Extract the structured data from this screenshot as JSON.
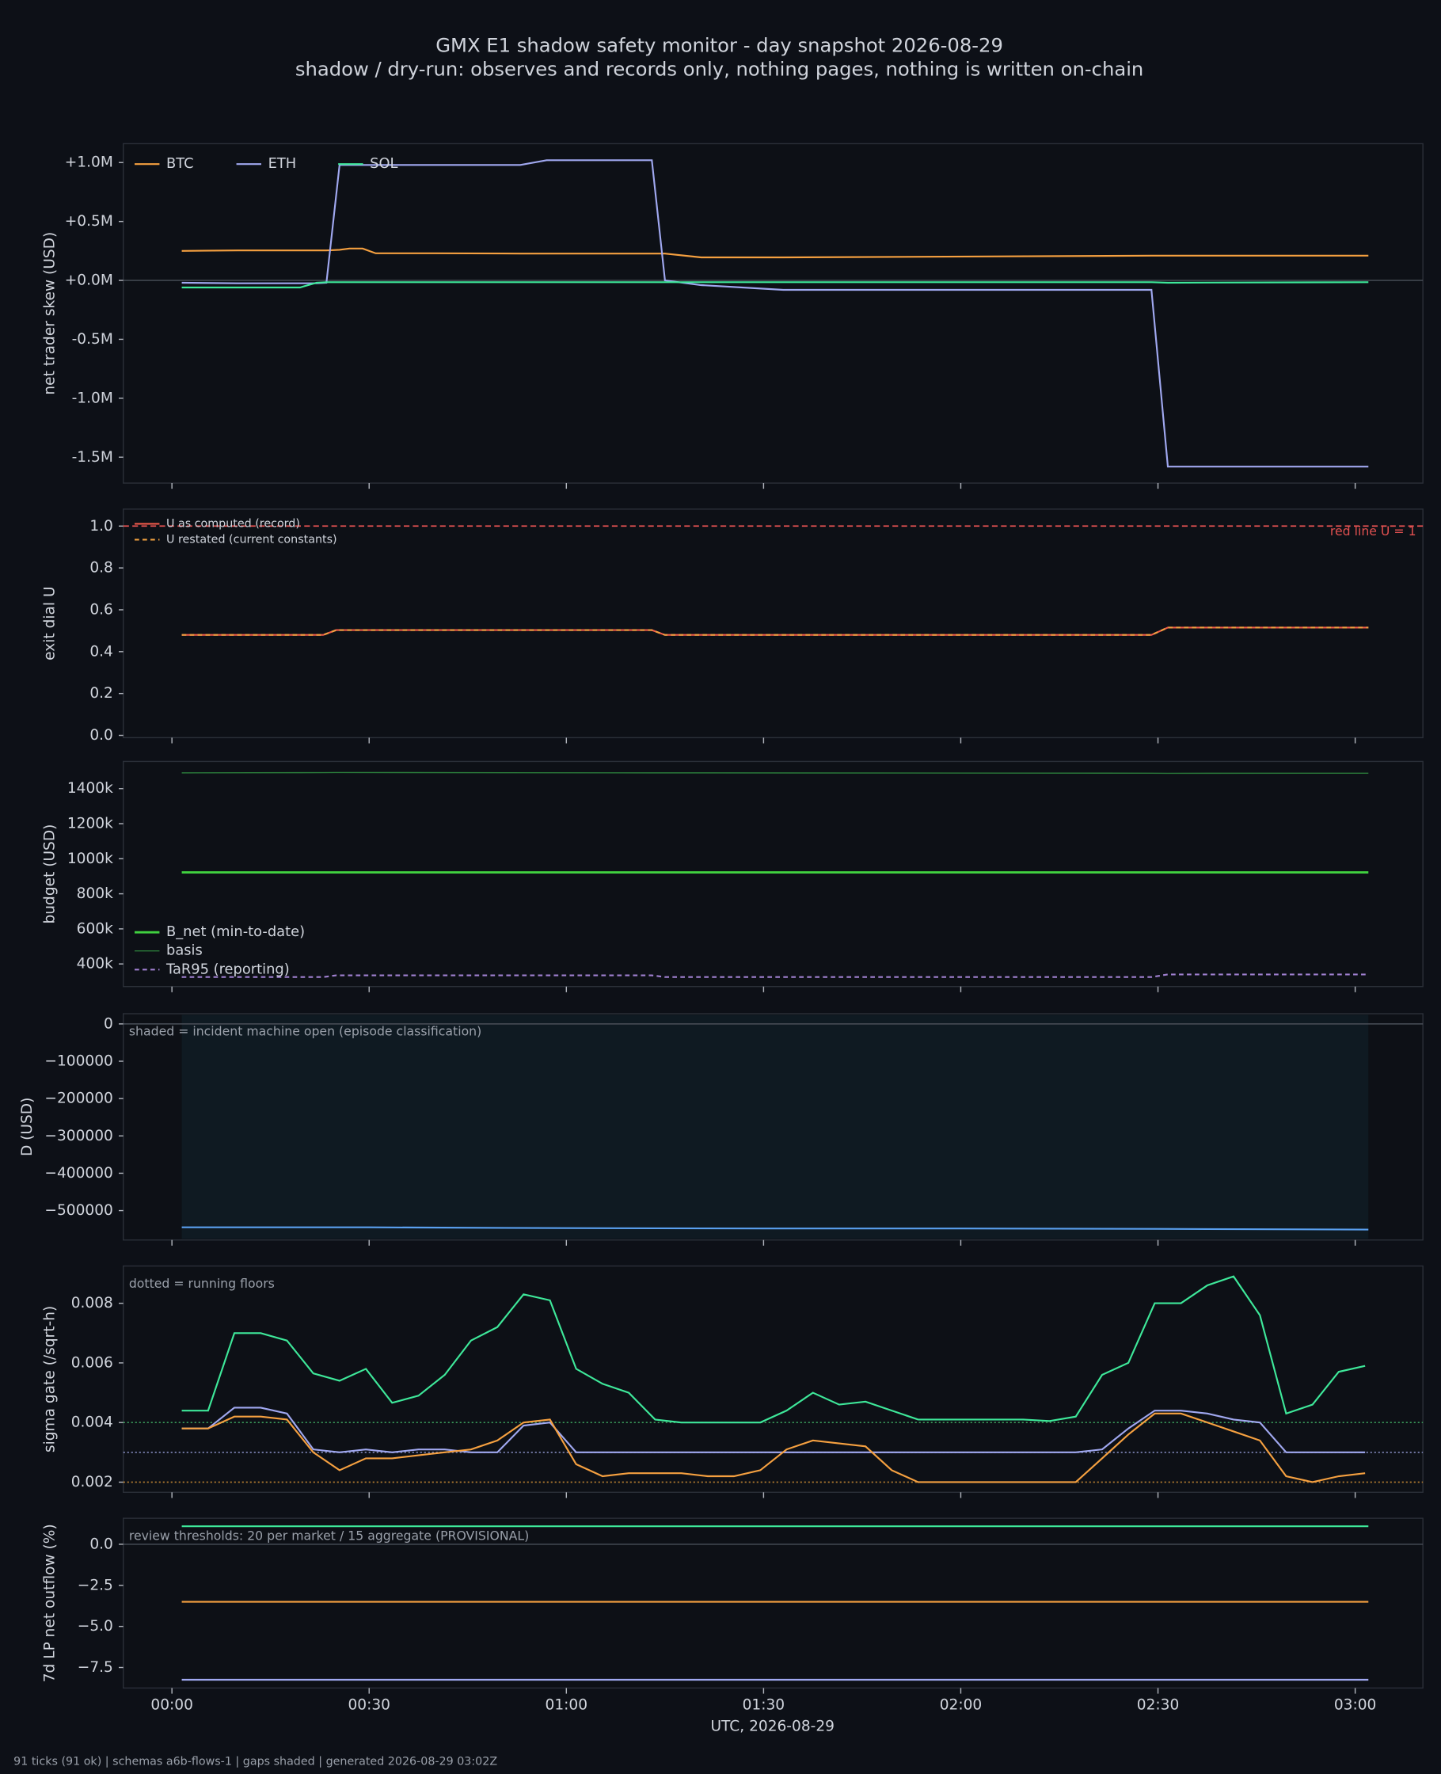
{
  "title": "GMX E1 shadow safety monitor - day snapshot 2026-08-29",
  "subtitle": "shadow / dry-run: observes and records only, nothing pages, nothing is written on-chain",
  "xlabel": "UTC, 2026-08-29",
  "footer": "91 ticks (91 ok) | schemas a6b-flows-1 | gaps shaded | generated 2026-08-29 03:02Z",
  "xlim": [
    -7.4,
    190.3
  ],
  "xticks": [
    {
      "value": 0,
      "label": "00:00"
    },
    {
      "value": 30,
      "label": "00:30"
    },
    {
      "value": 60,
      "label": "01:00"
    },
    {
      "value": 90,
      "label": "01:30"
    },
    {
      "value": 120,
      "label": "02:00"
    },
    {
      "value": 150,
      "label": "02:30"
    },
    {
      "value": 180,
      "label": "03:00"
    }
  ],
  "chart_data": [
    {
      "type": "line",
      "ylabel": "net trader skew (USD)",
      "ylim": [
        -1720000,
        1160000
      ],
      "yticks": [
        {
          "value": -1500000,
          "label": "-1.5M"
        },
        {
          "value": -1000000,
          "label": "-1.0M"
        },
        {
          "value": -500000,
          "label": "-0.5M"
        },
        {
          "value": 0,
          "label": "+0.0M"
        },
        {
          "value": 500000,
          "label": "+0.5M"
        },
        {
          "value": 1000000,
          "label": "+1.0M"
        }
      ],
      "zero_line": true,
      "legend": "upper left",
      "legend_columns": 3,
      "x": [
        1.5,
        10,
        19.5,
        22,
        23.5,
        25.5,
        27,
        29,
        31,
        40,
        53,
        57,
        73,
        75,
        80.5,
        93,
        149,
        151.5,
        182
      ],
      "series": [
        {
          "name": "BTC",
          "color": "#f5a040",
          "values": [
            250000,
            255000,
            255000,
            255000,
            255000,
            260000,
            270000,
            270000,
            230000,
            230000,
            228000,
            228000,
            228000,
            228000,
            195000,
            195000,
            210000,
            210000,
            210000
          ]
        },
        {
          "name": "ETH",
          "color": "#a0a8f0",
          "values": [
            -20000,
            -25000,
            -25000,
            -25000,
            -20000,
            980000,
            980000,
            980000,
            980000,
            980000,
            980000,
            1020000,
            1020000,
            0,
            -40000,
            -80000,
            -80000,
            -1580000,
            -1580000
          ]
        },
        {
          "name": "SOL",
          "color": "#3ee89a",
          "values": [
            -60000,
            -60000,
            -60000,
            -20000,
            -15000,
            -15000,
            -15000,
            -15000,
            -15000,
            -15000,
            -15000,
            -15000,
            -15000,
            -15000,
            -15000,
            -15000,
            -15000,
            -20000,
            -15000
          ]
        }
      ]
    },
    {
      "type": "line",
      "ylabel": "exit dial U",
      "ylim": [
        -0.011,
        1.081
      ],
      "yticks": [
        {
          "value": 0,
          "label": "0.0"
        },
        0.2,
        0.4,
        0.6,
        0.8,
        {
          "value": 1,
          "label": "1.0"
        }
      ],
      "legend": "upper left",
      "legend_small": true,
      "hlines": [
        {
          "value": 1,
          "color": "#e05050",
          "style": "dashed",
          "label": "red line U = 1"
        }
      ],
      "x": [
        1.5,
        23,
        25,
        73,
        75,
        149,
        151.5,
        182
      ],
      "series": [
        {
          "name": "U as computed (record)",
          "color": "#f05a4a",
          "values": [
            0.48,
            0.48,
            0.503,
            0.503,
            0.48,
            0.48,
            0.515,
            0.515
          ]
        },
        {
          "name": "U restated (current constants)",
          "color": "#f0a040",
          "dash": true,
          "values": [
            0.48,
            0.48,
            0.503,
            0.503,
            0.48,
            0.48,
            0.515,
            0.515
          ]
        }
      ]
    },
    {
      "type": "line",
      "ylabel": "budget (USD)",
      "ylim": [
        271000,
        1555000
      ],
      "yticks": [
        {
          "value": 400000,
          "label": "400k"
        },
        {
          "value": 600000,
          "label": "600k"
        },
        {
          "value": 800000,
          "label": "800k"
        },
        {
          "value": 1000000,
          "label": "1000k"
        },
        {
          "value": 1200000,
          "label": "1200k"
        },
        {
          "value": 1400000,
          "label": "1400k"
        }
      ],
      "legend": "lower left",
      "x": [
        1.5,
        23,
        25,
        73,
        75,
        149,
        151.5,
        182
      ],
      "series": [
        {
          "name": "B_net (min-to-date)",
          "color": "#40d040",
          "width": 2,
          "values": [
            922000,
            922000,
            922000,
            922000,
            922000,
            922000,
            922000,
            922000
          ]
        },
        {
          "name": "basis",
          "color": "#2a7a3a",
          "width": 1,
          "values": [
            1490000,
            1491000,
            1492000,
            1490000,
            1490000,
            1488000,
            1487000,
            1488000
          ]
        },
        {
          "name": "TaR95 (reporting)",
          "color": "#a080d0",
          "dash": true,
          "values": [
            325000,
            325000,
            335000,
            335000,
            325000,
            325000,
            340000,
            340000
          ]
        }
      ]
    },
    {
      "type": "line",
      "ylabel": "D (USD)",
      "ylim": [
        -578800,
        27300
      ],
      "yticks": [
        {
          "value": -500000,
          "label": "−500000"
        },
        {
          "value": -400000,
          "label": "−400000"
        },
        {
          "value": -300000,
          "label": "−300000"
        },
        {
          "value": -200000,
          "label": "−200000"
        },
        {
          "value": -100000,
          "label": "−100000"
        },
        0
      ],
      "zero_line": true,
      "shade_x": [
        1.5,
        182
      ],
      "note": "shaded = incident machine open (episode classification)",
      "x": [
        1.5,
        30,
        60,
        90,
        120,
        150,
        182
      ],
      "series": [
        {
          "color": "#5aa0f0",
          "values": [
            -545000,
            -545000,
            -547000,
            -548000,
            -548000,
            -549000,
            -551000
          ]
        }
      ]
    },
    {
      "type": "line",
      "ylabel": "sigma gate (/sqrt-h)",
      "ylim": [
        0.00166,
        0.00925
      ],
      "yticks": [
        0.002,
        0.004,
        0.006,
        0.008
      ],
      "note": "dotted = running floors",
      "hlines": [
        {
          "value": 0.004,
          "color": "#3a9a5a",
          "style": "dotted"
        },
        {
          "value": 0.003,
          "color": "#7a80b0",
          "style": "dotted"
        },
        {
          "value": 0.002,
          "color": "#b07a30",
          "style": "dotted"
        }
      ],
      "x": [
        1.5,
        5.5,
        9.5,
        13.5,
        17.5,
        21.5,
        25.5,
        29.5,
        33.5,
        37.5,
        41.5,
        45.5,
        49.5,
        53.5,
        57.5,
        61.5,
        65.5,
        69.5,
        73.5,
        77.5,
        81.5,
        85.5,
        89.5,
        93.5,
        97.5,
        101.5,
        105.5,
        109.5,
        113.5,
        117.5,
        121.5,
        125.5,
        129.5,
        133.5,
        137.5,
        141.5,
        145.5,
        149.5,
        153.5,
        157.5,
        161.5,
        165.5,
        169.5,
        173.5,
        177.5,
        181.5
      ],
      "series": [
        {
          "color": "#3ee89a",
          "values": [
            0.0044,
            0.0044,
            0.007,
            0.007,
            0.00675,
            0.00565,
            0.0054,
            0.0058,
            0.00466,
            0.0049,
            0.0056,
            0.00675,
            0.0072,
            0.0083,
            0.0081,
            0.0058,
            0.0053,
            0.005,
            0.0041,
            0.004,
            0.004,
            0.004,
            0.004,
            0.0044,
            0.005,
            0.0046,
            0.0047,
            0.0044,
            0.0041,
            0.0041,
            0.0041,
            0.0041,
            0.0041,
            0.00405,
            0.0042,
            0.0056,
            0.006,
            0.008,
            0.008,
            0.0086,
            0.0089,
            0.0076,
            0.0043,
            0.0046,
            0.0057,
            0.0059
          ]
        },
        {
          "color": "#a0a8f0",
          "values": [
            0.0038,
            0.0038,
            0.0045,
            0.0045,
            0.0043,
            0.0031,
            0.003,
            0.0031,
            0.003,
            0.0031,
            0.0031,
            0.003,
            0.003,
            0.0039,
            0.004,
            0.003,
            0.003,
            0.003,
            0.003,
            0.003,
            0.003,
            0.003,
            0.003,
            0.003,
            0.003,
            0.003,
            0.003,
            0.003,
            0.003,
            0.003,
            0.003,
            0.003,
            0.003,
            0.003,
            0.003,
            0.0031,
            0.0038,
            0.0044,
            0.0044,
            0.0043,
            0.0041,
            0.004,
            0.003,
            0.003,
            0.003,
            0.003
          ]
        },
        {
          "color": "#f5a040",
          "values": [
            0.0038,
            0.0038,
            0.0042,
            0.0042,
            0.0041,
            0.003,
            0.0024,
            0.0028,
            0.0028,
            0.0029,
            0.003,
            0.0031,
            0.0034,
            0.004,
            0.0041,
            0.0026,
            0.0022,
            0.0023,
            0.0023,
            0.0023,
            0.0022,
            0.0022,
            0.0024,
            0.0031,
            0.0034,
            0.0033,
            0.0032,
            0.0024,
            0.002,
            0.002,
            0.002,
            0.002,
            0.002,
            0.002,
            0.002,
            0.0028,
            0.0036,
            0.0043,
            0.0043,
            0.004,
            0.0037,
            0.0034,
            0.0022,
            0.002,
            0.0022,
            0.0023
          ]
        }
      ]
    },
    {
      "type": "line",
      "ylabel": "7d LP net outflow (%)",
      "ylim": [
        -8.75,
        1.58
      ],
      "yticks": [
        {
          "value": -7.5,
          "label": "−7.5"
        },
        {
          "value": -5,
          "label": "−5.0"
        },
        {
          "value": -2.5,
          "label": "−2.5"
        },
        {
          "value": 0,
          "label": "0.0"
        }
      ],
      "zero_line": true,
      "note": "review thresholds: 20 per market / 15 aggregate (PROVISIONAL)",
      "x": [
        1.5,
        182
      ],
      "series": [
        {
          "color": "#3ee89a",
          "values": [
            1.1,
            1.1
          ]
        },
        {
          "color": "#f5a040",
          "values": [
            -3.5,
            -3.5
          ]
        },
        {
          "color": "#a0a8f0",
          "values": [
            -8.25,
            -8.25
          ]
        }
      ]
    }
  ]
}
